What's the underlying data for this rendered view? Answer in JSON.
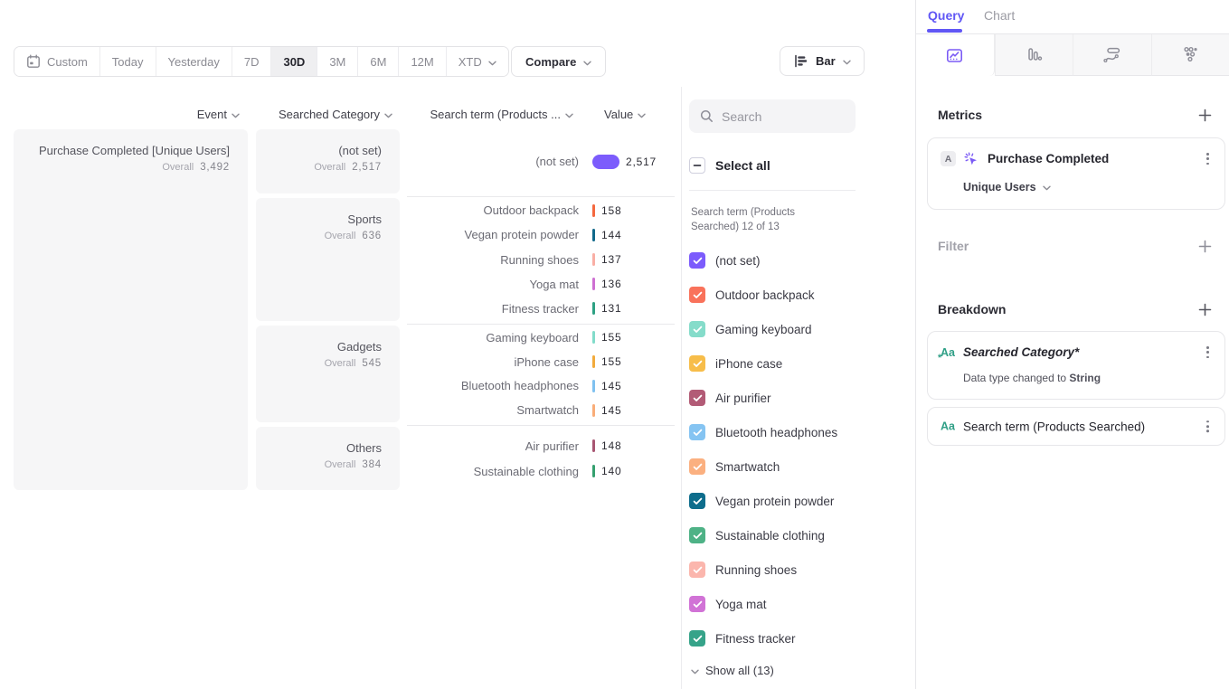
{
  "toolbar": {
    "date_ranges": [
      "Custom",
      "Today",
      "Yesterday",
      "7D",
      "30D",
      "3M",
      "6M",
      "12M",
      "XTD"
    ],
    "active_range": "30D",
    "compare_label": "Compare",
    "chart_type": "Bar"
  },
  "table": {
    "headers": {
      "event": "Event",
      "category": "Searched Category",
      "term": "Search term (Products ...",
      "value": "Value"
    },
    "overall_label": "Overall",
    "event": {
      "name": "Purchase Completed [Unique Users]",
      "overall": "3,492"
    },
    "categories": [
      {
        "name": "(not set)",
        "overall": "2,517",
        "rows": [
          {
            "term": "(not set)",
            "value": "2,517",
            "color": "#7c5cfc",
            "big": true
          }
        ]
      },
      {
        "name": "Sports",
        "overall": "636",
        "rows": [
          {
            "term": "Outdoor backpack",
            "value": "158",
            "color": "#f4683f"
          },
          {
            "term": "Vegan protein powder",
            "value": "144",
            "color": "#11698a"
          },
          {
            "term": "Running shoes",
            "value": "137",
            "color": "#f9afa5"
          },
          {
            "term": "Yoga mat",
            "value": "136",
            "color": "#ce70d2"
          },
          {
            "term": "Fitness tracker",
            "value": "131",
            "color": "#2da183"
          }
        ]
      },
      {
        "name": "Gadgets",
        "overall": "545",
        "rows": [
          {
            "term": "Gaming keyboard",
            "value": "155",
            "color": "#82dcca"
          },
          {
            "term": "iPhone case",
            "value": "155",
            "color": "#f2ab3c"
          },
          {
            "term": "Bluetooth headphones",
            "value": "145",
            "color": "#7fc1f0"
          },
          {
            "term": "Smartwatch",
            "value": "145",
            "color": "#f9ad78"
          }
        ]
      },
      {
        "name": "Others",
        "overall": "384",
        "rows": [
          {
            "term": "Air purifier",
            "value": "148",
            "color": "#a85672"
          },
          {
            "term": "Sustainable clothing",
            "value": "140",
            "color": "#35a06f"
          }
        ]
      }
    ]
  },
  "filter_panel": {
    "search_placeholder": "Search",
    "select_all_label": "Select all",
    "group_label": "Search term (Products Searched) 12 of 13",
    "items": [
      {
        "label": "(not set)",
        "color": "#7c5cfc"
      },
      {
        "label": "Outdoor backpack",
        "color": "#f9725b"
      },
      {
        "label": "Gaming keyboard",
        "color": "#85dcca"
      },
      {
        "label": "iPhone case",
        "color": "#f7bd4a"
      },
      {
        "label": "Air purifier",
        "color": "#b25b76"
      },
      {
        "label": "Bluetooth headphones",
        "color": "#85c4f2"
      },
      {
        "label": "Smartwatch",
        "color": "#fbb080"
      },
      {
        "label": "Vegan protein powder",
        "color": "#0e6d8c"
      },
      {
        "label": "Sustainable clothing",
        "color": "#4eb286"
      },
      {
        "label": "Running shoes",
        "color": "#fbb6ad"
      },
      {
        "label": "Yoga mat",
        "color": "#d173d6"
      },
      {
        "label": "Fitness tracker",
        "color": "#36a389",
        "patterned": true
      }
    ],
    "show_all_label": "Show all (13)"
  },
  "query_panel": {
    "tabs": {
      "query": "Query",
      "chart": "Chart"
    },
    "metrics": {
      "heading": "Metrics",
      "card": {
        "badge": "A",
        "name": "Purchase Completed",
        "measure": "Unique Users"
      }
    },
    "filter": {
      "heading": "Filter"
    },
    "breakdown": {
      "heading": "Breakdown",
      "items": [
        {
          "icon": "Aa",
          "name": "Searched Category*",
          "italic": true,
          "modified": true,
          "note": "Data type changed to ",
          "note_value": "String"
        },
        {
          "icon": "Aa",
          "name": "Search term (Products Searched)"
        }
      ]
    },
    "accent_color": "#6157f5"
  }
}
